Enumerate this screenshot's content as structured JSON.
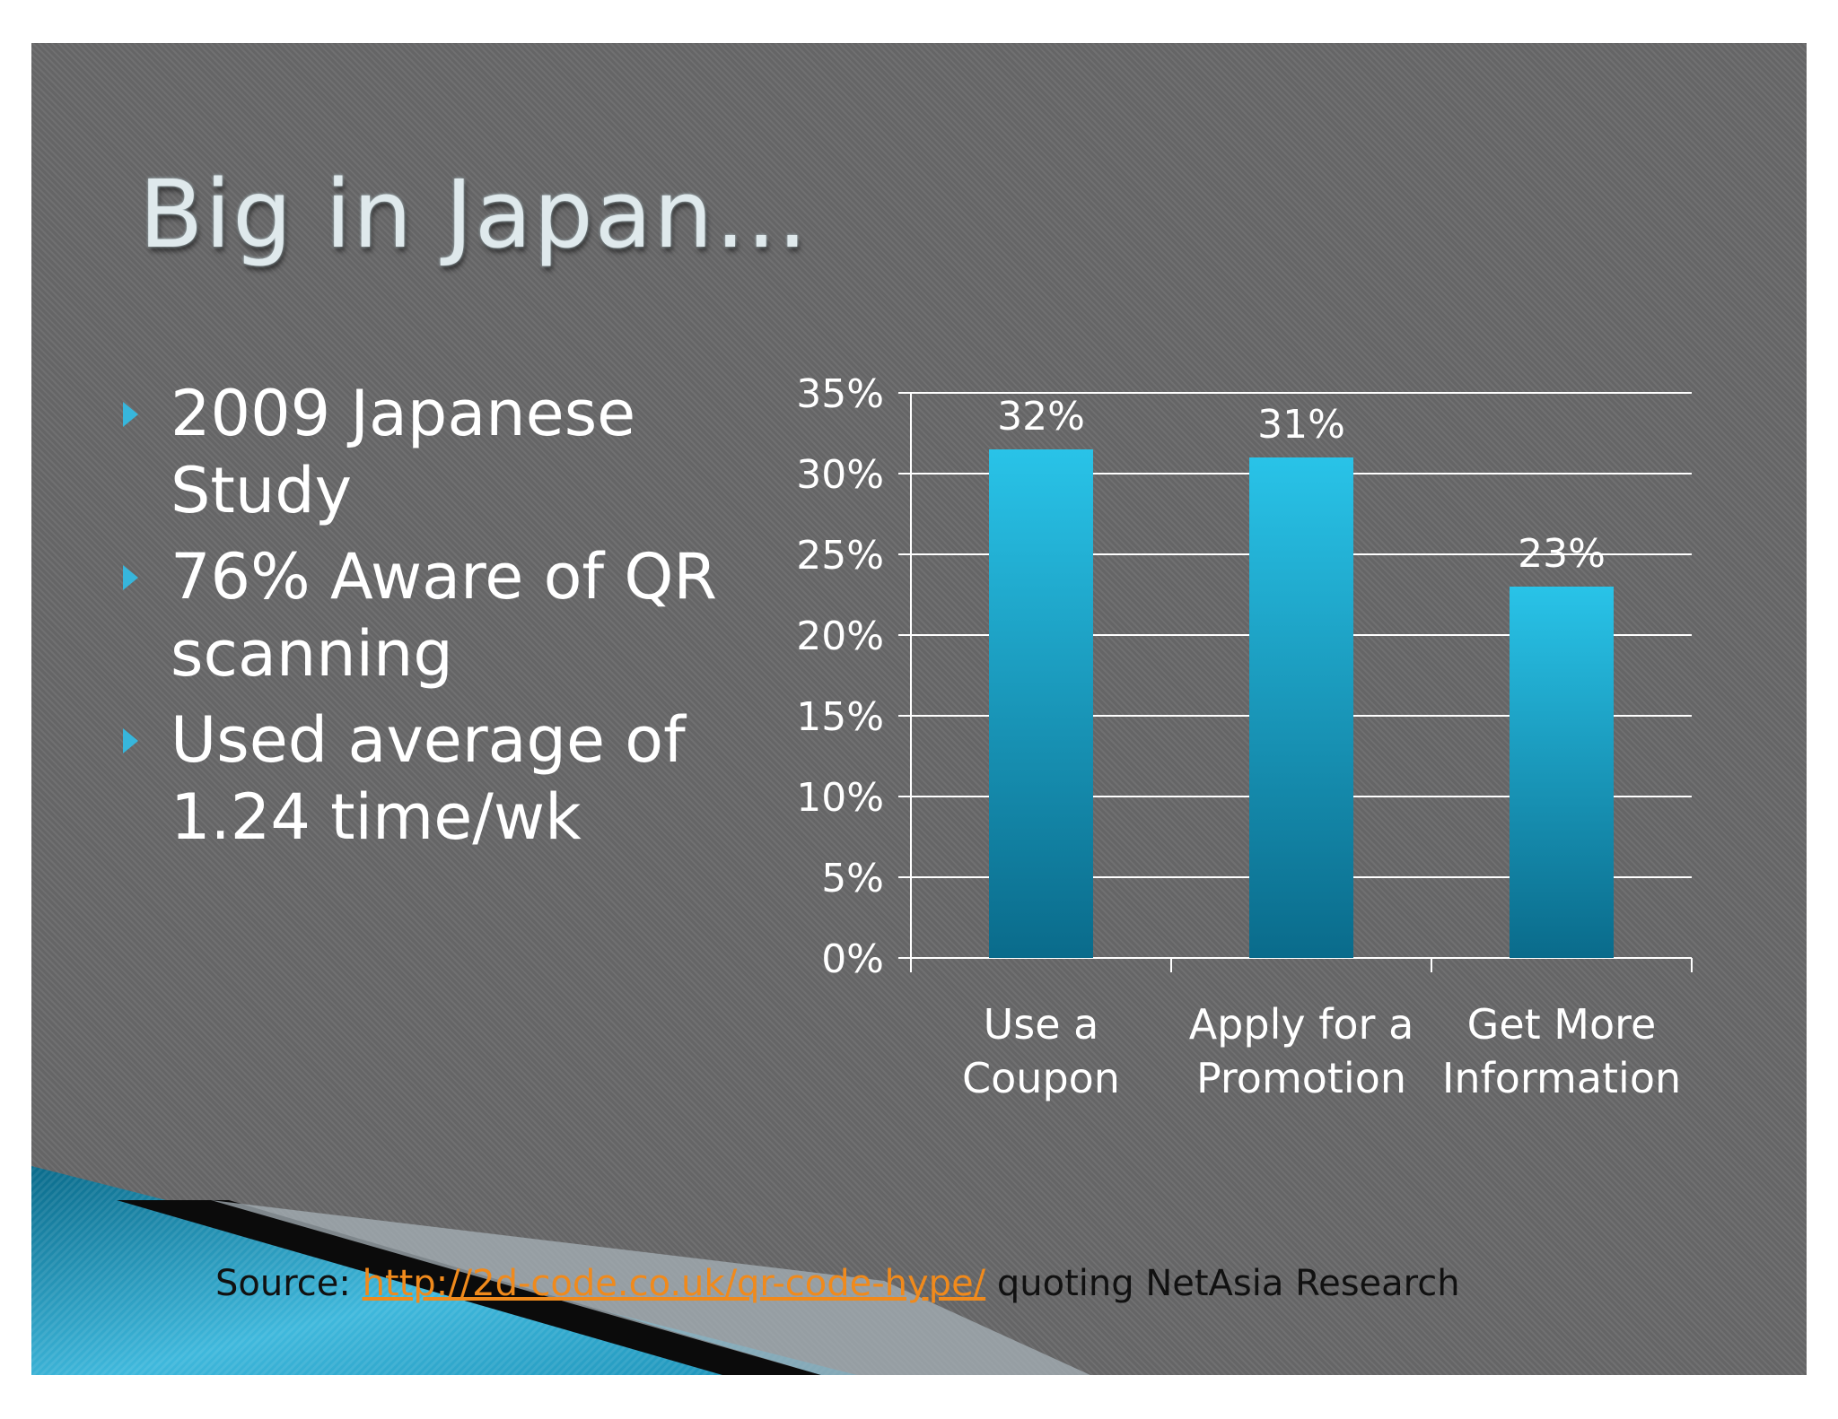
{
  "slide": {
    "title": "Big in Japan…",
    "bullets": [
      "2009 Japanese Study",
      "76% Aware of QR scanning",
      "Used average of 1.24 time/wk"
    ],
    "source": {
      "prefix": "Source:",
      "link_text": "http://2d-code.co.uk/qr-code-hype/",
      "suffix": "quoting NetAsia Research"
    },
    "colors": {
      "background": "#6a6a6b",
      "bar_top": "#29c3e8",
      "bar_bottom": "#0a6b8b",
      "link": "#f08a1c",
      "accent": "#37b6dc"
    }
  },
  "chart_data": {
    "type": "bar",
    "categories": [
      [
        "Use a",
        "Coupon"
      ],
      [
        "Apply for a",
        "Promotion"
      ],
      [
        "Get More",
        "Information"
      ]
    ],
    "values": [
      0.315,
      0.31,
      0.23
    ],
    "data_labels": [
      "32%",
      "31%",
      "23%"
    ],
    "ylim": [
      0,
      0.35
    ],
    "ytick_step": 0.05,
    "ytick_labels": [
      "0%",
      "5%",
      "10%",
      "15%",
      "20%",
      "25%",
      "30%",
      "35%"
    ],
    "grid": true,
    "legend": "none"
  }
}
